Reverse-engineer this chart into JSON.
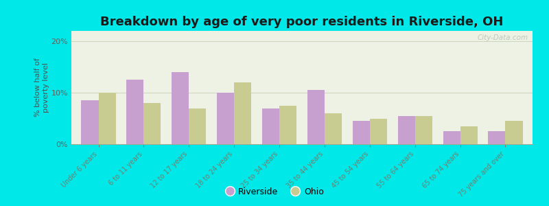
{
  "title": "Breakdown by age of very poor residents in Riverside, OH",
  "categories": [
    "Under 6 years",
    "6 to 11 years",
    "12 to 17 years",
    "18 to 24 years",
    "25 to 34 years",
    "35 to 44 years",
    "45 to 54 years",
    "55 to 64 years",
    "65 to 74 years",
    "75 years and over"
  ],
  "riverside_values": [
    8.5,
    12.5,
    14.0,
    10.0,
    7.0,
    10.5,
    4.5,
    5.5,
    2.5,
    2.5
  ],
  "ohio_values": [
    10.0,
    8.0,
    7.0,
    12.0,
    7.5,
    6.0,
    5.0,
    5.5,
    3.5,
    4.5
  ],
  "riverside_color": "#c8a0d0",
  "ohio_color": "#c8cc90",
  "background_outer": "#00e8e8",
  "background_plot": "#eef2e4",
  "ylabel": "% below half of\npoverty level",
  "ylim": [
    0,
    22
  ],
  "yticks": [
    0,
    10,
    20
  ],
  "ytick_labels": [
    "0%",
    "10%",
    "20%"
  ],
  "title_fontsize": 13,
  "axis_label_fontsize": 8,
  "tick_label_fontsize": 7,
  "bar_width": 0.38,
  "legend_riverside": "Riverside",
  "legend_ohio": "Ohio",
  "watermark": "City-Data.com",
  "xtick_color": "#708070",
  "ytick_color": "#606060",
  "ylabel_color": "#505050",
  "grid_color": "#c8d0b8",
  "bottom_spine_color": "#a0a890"
}
